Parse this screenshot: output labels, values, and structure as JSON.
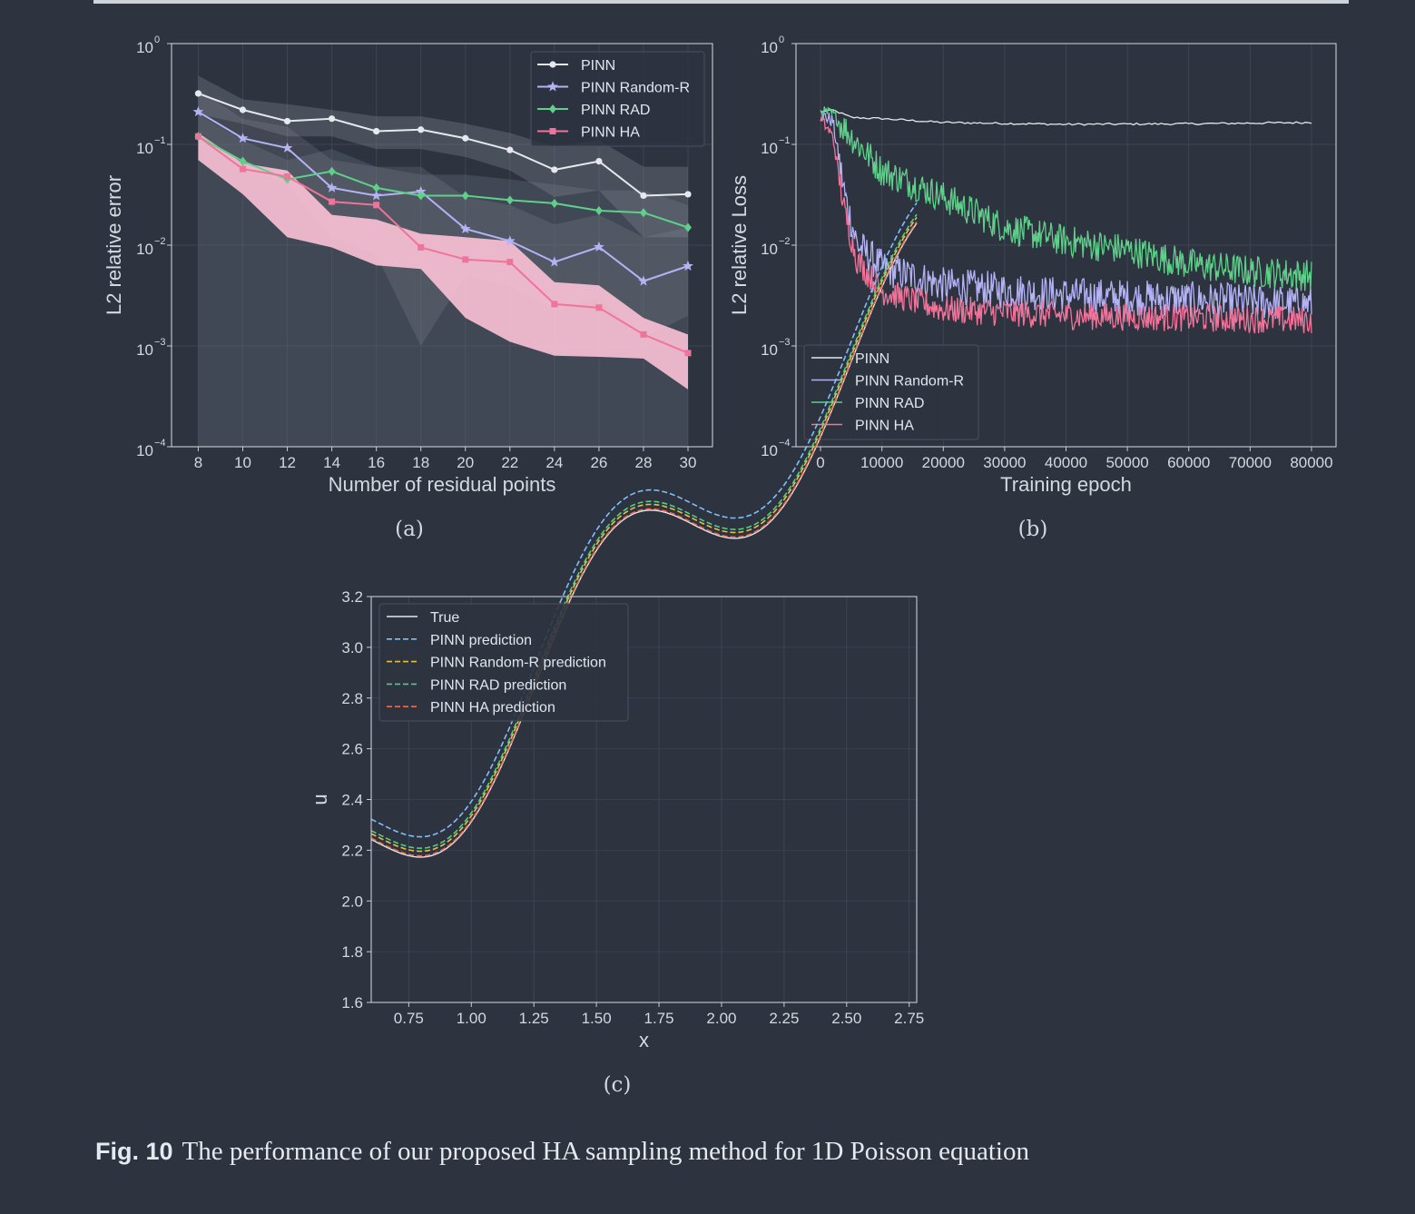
{
  "caption": {
    "label": "Fig. 10",
    "text": "The performance of our proposed HA sampling method for 1D Poisson equation"
  },
  "colors": {
    "pinn": "#e6e8ee",
    "random_r": "#b3b3f5",
    "rad": "#5fd08a",
    "ha": "#f2739a",
    "true": "#e6e8ee",
    "pinn_pred": "#7fbfff",
    "random_pred": "#e6c23a",
    "rad_pred": "#4fd08a",
    "ha_pred": "#f26a4f"
  },
  "chart_data": [
    {
      "id": "a",
      "type": "line",
      "subtitle": "(a)",
      "xlabel": "Number of residual points",
      "ylabel": "L2 relative error",
      "yscale": "log",
      "xlim": [
        6.8,
        31.1
      ],
      "ylim": [
        0.0001,
        1
      ],
      "xticks": [
        8,
        10,
        12,
        14,
        16,
        18,
        20,
        22,
        24,
        26,
        28,
        30
      ],
      "yticks": [
        {
          "value": 1,
          "base": "10",
          "exp": "0"
        },
        {
          "value": 0.1,
          "base": "10",
          "exp": "−1"
        },
        {
          "value": 0.01,
          "base": "10",
          "exp": "−2"
        },
        {
          "value": 0.001,
          "base": "10",
          "exp": "−3"
        },
        {
          "value": 0.0001,
          "base": "10",
          "exp": "−4"
        }
      ],
      "x": [
        8,
        10,
        12,
        14,
        16,
        18,
        20,
        22,
        24,
        26,
        28,
        30
      ],
      "series": [
        {
          "key": "pinn",
          "name": "PINN",
          "marker": "circle",
          "values": [
            0.32,
            0.22,
            0.17,
            0.18,
            0.135,
            0.14,
            0.115,
            0.088,
            0.056,
            0.068,
            0.031,
            0.032
          ],
          "upper": [
            0.48,
            0.28,
            0.25,
            0.22,
            0.19,
            0.19,
            0.16,
            0.13,
            0.095,
            0.11,
            0.06,
            0.06
          ],
          "lower": [
            0.2,
            0.16,
            0.12,
            0.12,
            0.09,
            0.09,
            0.075,
            0.055,
            0.03,
            0.035,
            0.012,
            0.012
          ]
        },
        {
          "key": "random_r",
          "name": "PINN Random-R",
          "marker": "star",
          "values": [
            0.21,
            0.115,
            0.092,
            0.037,
            0.031,
            0.034,
            0.0145,
            0.011,
            0.0068,
            0.0096,
            0.0044,
            0.0062
          ],
          "upper": [
            0.35,
            0.18,
            0.15,
            0.07,
            0.06,
            0.06,
            0.03,
            0.025,
            0.016,
            0.02,
            0.012,
            0.015
          ],
          "lower": [
            0.12,
            0.06,
            0.04,
            0.012,
            0.008,
            0.001,
            0.005,
            0.004,
            0.0022,
            0.003,
            0.0012,
            0.002
          ]
        },
        {
          "key": "rad",
          "name": "PINN RAD",
          "marker": "diamond",
          "values": [
            0.12,
            0.068,
            0.045,
            0.054,
            0.037,
            0.031,
            0.031,
            0.028,
            0.026,
            0.022,
            0.021,
            0.015
          ],
          "upper": [
            0.2,
            0.11,
            0.07,
            0.09,
            0.06,
            0.05,
            0.05,
            0.045,
            0.04,
            0.035,
            0.035,
            0.025
          ],
          "lower": [
            0.0001,
            0.0001,
            0.0001,
            0.0001,
            0.0001,
            0.0001,
            0.0001,
            0.0001,
            0.0001,
            0.0001,
            0.0001,
            0.0001
          ]
        },
        {
          "key": "ha",
          "name": "PINN HA",
          "marker": "square",
          "values": [
            0.12,
            0.057,
            0.048,
            0.027,
            0.025,
            0.0095,
            0.0072,
            0.0068,
            0.0026,
            0.0024,
            0.0013,
            0.00085
          ],
          "upper": [
            0.13,
            0.065,
            0.055,
            0.02,
            0.018,
            0.013,
            0.012,
            0.011,
            0.0043,
            0.004,
            0.0019,
            0.0013
          ],
          "lower": [
            0.07,
            0.032,
            0.012,
            0.0095,
            0.0063,
            0.0058,
            0.0019,
            0.0011,
            0.0008,
            0.00078,
            0.00075,
            0.00037
          ]
        }
      ],
      "legend": "top-right"
    },
    {
      "id": "b",
      "type": "line",
      "subtitle": "(b)",
      "xlabel": "Training epoch",
      "ylabel": "L2 relative Loss",
      "yscale": "log",
      "xlim": [
        -4000,
        84000
      ],
      "ylim": [
        0.0001,
        1
      ],
      "xticks": [
        0,
        10000,
        20000,
        30000,
        40000,
        50000,
        60000,
        70000,
        80000
      ],
      "yticks": [
        {
          "value": 1,
          "base": "10",
          "exp": "0"
        },
        {
          "value": 0.1,
          "base": "10",
          "exp": "−1"
        },
        {
          "value": 0.01,
          "base": "10",
          "exp": "−2"
        },
        {
          "value": 0.001,
          "base": "10",
          "exp": "−3"
        },
        {
          "value": 0.0001,
          "base": "10",
          "exp": "−4"
        }
      ],
      "series": [
        {
          "key": "pinn",
          "name": "PINN",
          "trend": [
            [
              0,
              0.21
            ],
            [
              2000,
              0.22
            ],
            [
              5000,
              0.185
            ],
            [
              10000,
              0.18
            ],
            [
              20000,
              0.165
            ],
            [
              40000,
              0.158
            ],
            [
              60000,
              0.16
            ],
            [
              80000,
              0.165
            ]
          ],
          "noise": 0.01
        },
        {
          "key": "random_r",
          "name": "PINN Random-R",
          "trend": [
            [
              0,
              0.2
            ],
            [
              2000,
              0.17
            ],
            [
              4000,
              0.03
            ],
            [
              6000,
              0.01
            ],
            [
              10000,
              0.006
            ],
            [
              20000,
              0.004
            ],
            [
              40000,
              0.0032
            ],
            [
              60000,
              0.0029
            ],
            [
              80000,
              0.0026
            ]
          ],
          "noise": 0.18
        },
        {
          "key": "rad",
          "name": "PINN RAD",
          "trend": [
            [
              0,
              0.21
            ],
            [
              2000,
              0.2
            ],
            [
              5000,
              0.12
            ],
            [
              10000,
              0.055
            ],
            [
              20000,
              0.03
            ],
            [
              30000,
              0.015
            ],
            [
              40000,
              0.011
            ],
            [
              50000,
              0.009
            ],
            [
              60000,
              0.0065
            ],
            [
              70000,
              0.0055
            ],
            [
              80000,
              0.005
            ]
          ],
          "noise": 0.16
        },
        {
          "key": "ha",
          "name": "PINN HA",
          "trend": [
            [
              0,
              0.18
            ],
            [
              2000,
              0.12
            ],
            [
              4000,
              0.02
            ],
            [
              6000,
              0.007
            ],
            [
              10000,
              0.0035
            ],
            [
              20000,
              0.0023
            ],
            [
              40000,
              0.002
            ],
            [
              60000,
              0.0019
            ],
            [
              80000,
              0.0018
            ]
          ],
          "noise": 0.14
        }
      ],
      "legend": "lower-left"
    },
    {
      "id": "c",
      "type": "line",
      "subtitle": "(c)",
      "xlabel": "x",
      "ylabel": "u",
      "xlim": [
        0.6,
        2.78
      ],
      "ylim": [
        1.6,
        3.2
      ],
      "xticks": [
        "0.75",
        "1.00",
        "1.25",
        "1.50",
        "1.75",
        "2.00",
        "2.25",
        "2.50",
        "2.75"
      ],
      "yticks": [
        "1.6",
        "1.8",
        "2.0",
        "2.2",
        "2.4",
        "2.6",
        "2.8",
        "3.0",
        "3.2"
      ],
      "function": "u(x) = x + 0.3*sin(5x) + 1.6, x in [0.6, 2.78]",
      "series": [
        {
          "key": "true",
          "name": "True",
          "offset": 0,
          "dash": "none"
        },
        {
          "key": "pinn_pred",
          "name": "PINN prediction",
          "offset": 0.08,
          "dash": "dashed"
        },
        {
          "key": "random_pred",
          "name": "PINN Random-R prediction",
          "offset": 0.023,
          "dash": "dashed"
        },
        {
          "key": "rad_pred",
          "name": "PINN RAD prediction",
          "offset": 0.035,
          "dash": "dashed"
        },
        {
          "key": "ha_pred",
          "name": "PINN HA prediction",
          "offset": 0.005,
          "dash": "dashed"
        }
      ],
      "legend": "top-left"
    }
  ]
}
